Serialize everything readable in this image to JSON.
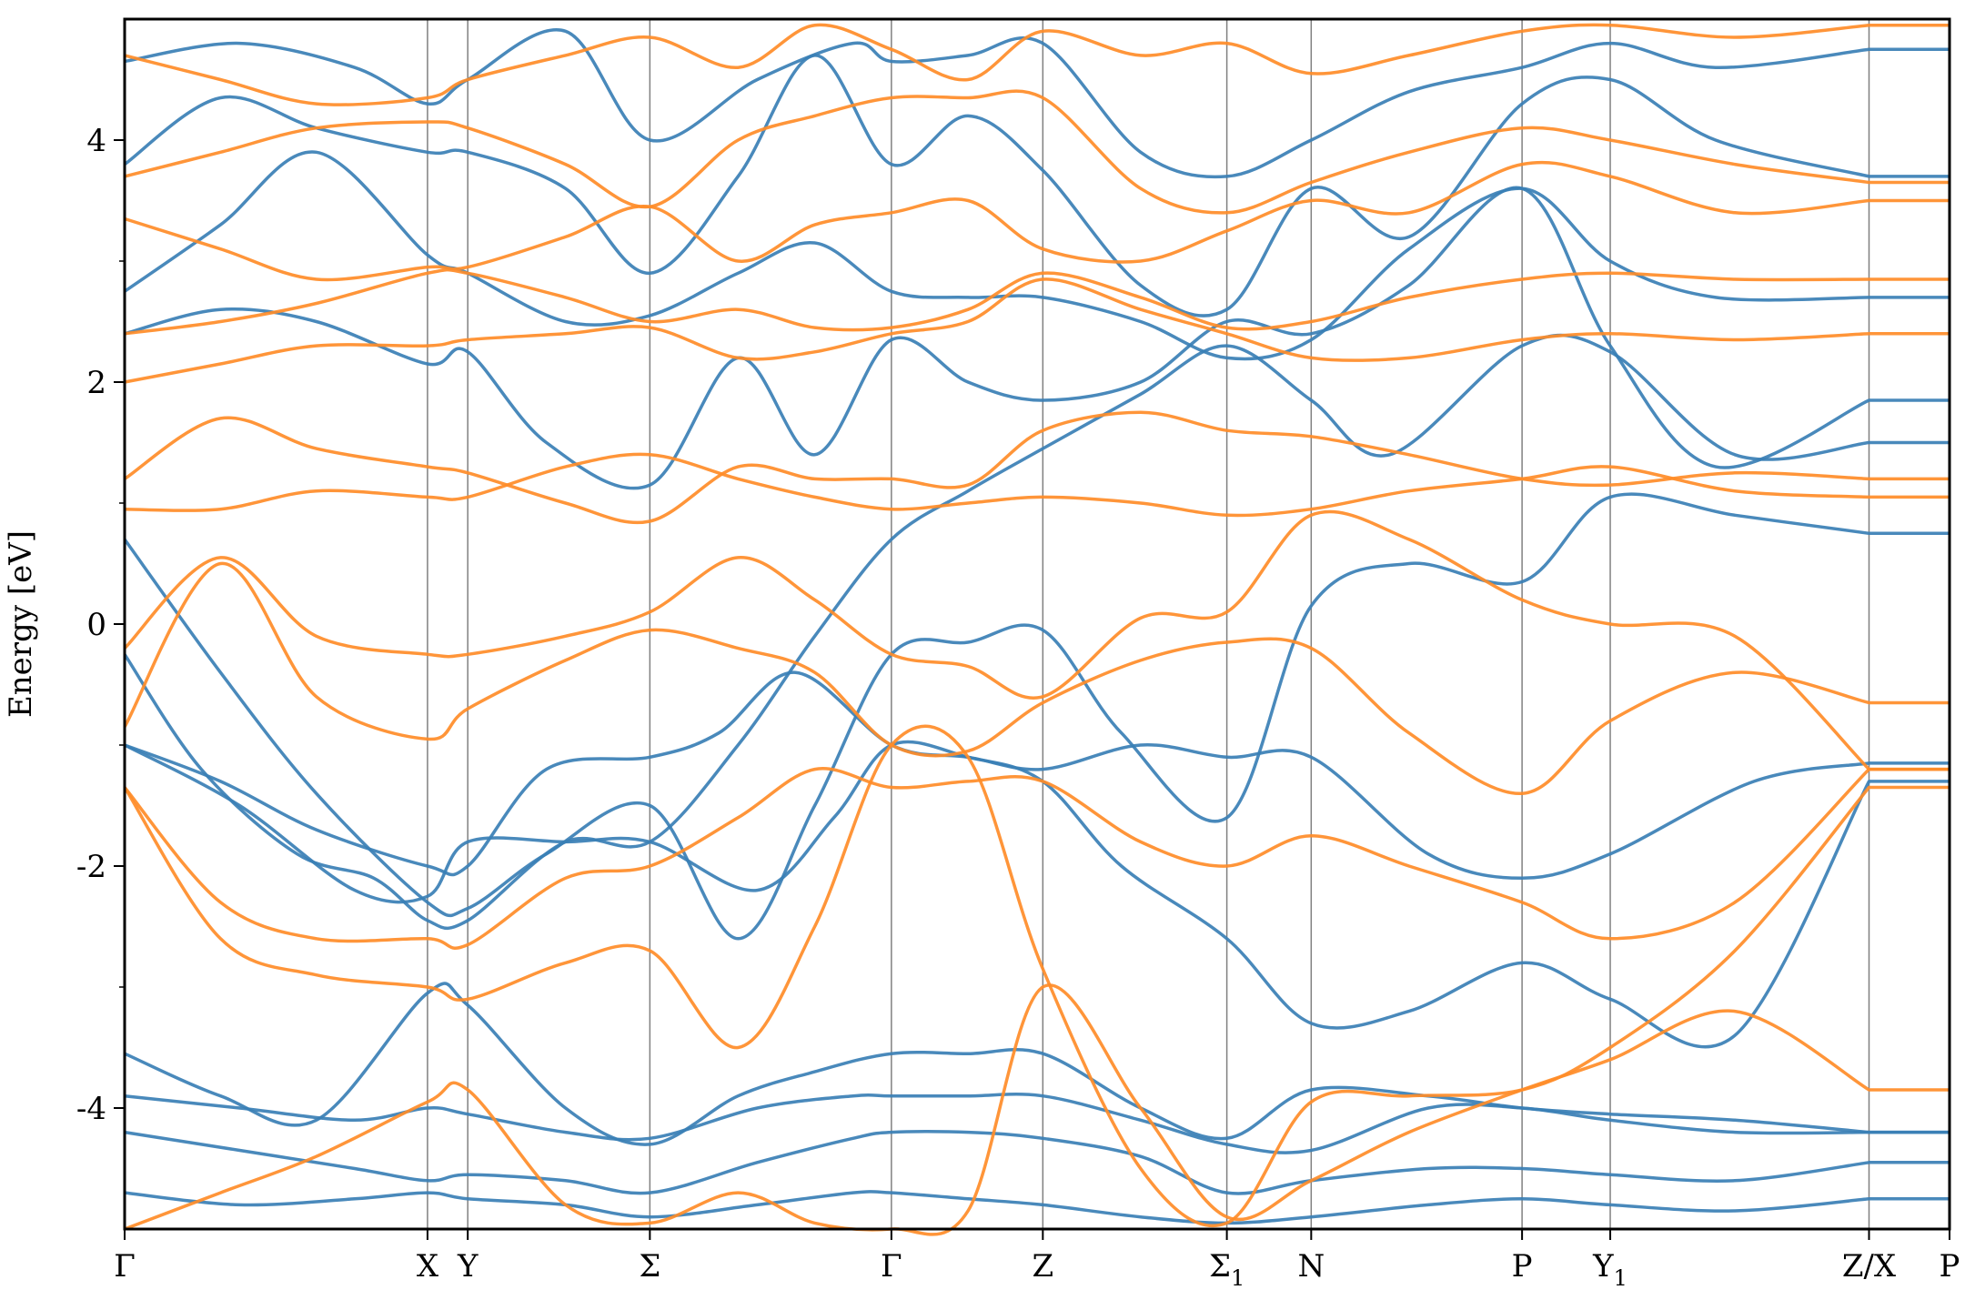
{
  "chart_data": {
    "type": "line",
    "title": "",
    "xlabel": "",
    "ylabel": "Energy [eV]",
    "ylim": [
      -5,
      5
    ],
    "y_ticks": [
      {
        "value": 4,
        "label": "4"
      },
      {
        "value": 2,
        "label": "2"
      },
      {
        "value": 0,
        "label": "0"
      },
      {
        "value": -2,
        "label": "-2"
      },
      {
        "value": -4,
        "label": "-4"
      }
    ],
    "y_minor_ticks": [
      3,
      1,
      -1,
      -3
    ],
    "xlim": [
      0,
      9.52
    ],
    "x_ticks": [
      {
        "x": 0.0,
        "label": "Γ",
        "sub": ""
      },
      {
        "x": 1.58,
        "label": "X",
        "sub": ""
      },
      {
        "x": 1.79,
        "label": "Y",
        "sub": ""
      },
      {
        "x": 2.74,
        "label": "Σ",
        "sub": ""
      },
      {
        "x": 4.0,
        "label": "Γ",
        "sub": ""
      },
      {
        "x": 4.79,
        "label": "Z",
        "sub": ""
      },
      {
        "x": 5.75,
        "label": "Σ",
        "sub": "1"
      },
      {
        "x": 6.19,
        "label": "N",
        "sub": ""
      },
      {
        "x": 7.29,
        "label": "P",
        "sub": ""
      },
      {
        "x": 7.75,
        "label": "Y",
        "sub": "1"
      },
      {
        "x": 9.1,
        "label": "Z/X",
        "sub": ""
      },
      {
        "x": 9.52,
        "label": "P",
        "sub": ""
      }
    ],
    "grid": "vertical lines at high-symmetry points",
    "legend": "none",
    "colors": {
      "band_a": "#3a7fb5",
      "band_b": "#ff8c28",
      "vline": "#808080",
      "axis": "#000000"
    },
    "series": [
      {
        "color": "band_a",
        "x": [
          0,
          0.5,
          1.0,
          1.58,
          1.79,
          2.2,
          2.74,
          3.2,
          3.6,
          4.0,
          4.4,
          4.79,
          5.2,
          5.75,
          6.19,
          6.7,
          7.29,
          7.75,
          8.4,
          9.1
        ],
        "y": [
          0.7,
          -0.4,
          -1.4,
          -2.3,
          -2.35,
          -1.9,
          -1.5,
          -2.6,
          -1.5,
          -0.25,
          -0.15,
          -0.05,
          -0.9,
          -1.6,
          0.15,
          0.5,
          0.35,
          1.05,
          0.9,
          0.75
        ]
      },
      {
        "color": "band_a",
        "x": [
          0,
          0.4,
          0.9,
          1.3,
          1.58,
          1.79,
          2.3,
          2.74,
          3.2,
          3.6,
          4.0,
          4.4,
          4.79,
          5.3,
          5.75,
          6.19,
          6.6,
          7.29,
          7.75,
          8.4,
          9.1
        ],
        "y": [
          -0.25,
          -1.2,
          -1.9,
          -2.1,
          -2.45,
          -2.45,
          -1.8,
          -1.8,
          -1.0,
          -0.1,
          0.7,
          1.1,
          1.45,
          1.9,
          2.3,
          1.85,
          1.4,
          2.3,
          2.25,
          1.4,
          1.5
        ]
      },
      {
        "color": "band_a",
        "x": [
          0,
          0.5,
          1.0,
          1.58,
          1.79,
          2.2,
          2.74,
          3.1,
          3.5,
          4.0,
          4.4,
          4.79,
          5.3,
          5.75,
          6.19,
          6.8,
          7.29,
          7.75,
          8.5,
          9.1
        ],
        "y": [
          -1.0,
          -1.3,
          -1.7,
          -2.0,
          -2.0,
          -1.2,
          -1.1,
          -0.9,
          -0.4,
          -1.0,
          -1.1,
          -1.2,
          -1.0,
          -1.1,
          -1.1,
          -1.9,
          -2.1,
          -1.9,
          -1.3,
          -1.15
        ]
      },
      {
        "color": "band_a",
        "x": [
          0,
          0.6,
          1.2,
          1.58,
          1.79,
          2.3,
          2.74,
          3.3,
          3.7,
          4.0,
          4.4,
          4.79,
          5.2,
          5.75,
          6.19,
          6.7,
          7.29,
          7.75,
          8.4,
          9.1
        ],
        "y": [
          -1.0,
          -1.5,
          -2.2,
          -2.25,
          -1.8,
          -1.8,
          -1.8,
          -2.2,
          -1.6,
          -1.0,
          -1.1,
          -1.3,
          -2.0,
          -2.6,
          -3.3,
          -3.2,
          -2.8,
          -3.1,
          -3.4,
          -1.3
        ]
      },
      {
        "color": "band_a",
        "x": [
          0,
          0.5,
          1.0,
          1.58,
          1.79,
          2.3,
          2.74,
          3.2,
          3.6,
          4.0,
          4.4,
          4.79,
          5.3,
          5.75,
          6.19,
          6.8,
          7.29,
          7.75,
          8.4,
          9.1
        ],
        "y": [
          -3.55,
          -3.9,
          -4.1,
          -3.05,
          -3.15,
          -4.0,
          -4.3,
          -3.9,
          -3.7,
          -3.55,
          -3.55,
          -3.55,
          -4.0,
          -4.25,
          -3.85,
          -3.9,
          -4.0,
          -4.05,
          -4.1,
          -4.2
        ]
      },
      {
        "color": "band_a",
        "x": [
          0,
          0.6,
          1.2,
          1.58,
          1.79,
          2.3,
          2.74,
          3.3,
          3.8,
          4.0,
          4.4,
          4.79,
          5.3,
          5.75,
          6.19,
          6.8,
          7.29,
          7.75,
          8.4,
          9.1
        ],
        "y": [
          -3.9,
          -4.0,
          -4.1,
          -4.0,
          -4.05,
          -4.2,
          -4.25,
          -4.0,
          -3.9,
          -3.9,
          -3.9,
          -3.9,
          -4.1,
          -4.3,
          -4.35,
          -4.0,
          -4.0,
          -4.1,
          -4.2,
          -4.2
        ]
      },
      {
        "color": "band_a",
        "x": [
          0,
          0.6,
          1.2,
          1.58,
          1.79,
          2.3,
          2.74,
          3.3,
          3.8,
          4.0,
          4.4,
          4.79,
          5.3,
          5.75,
          6.19,
          6.8,
          7.29,
          7.75,
          8.4,
          9.1
        ],
        "y": [
          -4.2,
          -4.35,
          -4.5,
          -4.6,
          -4.55,
          -4.6,
          -4.7,
          -4.45,
          -4.25,
          -4.2,
          -4.2,
          -4.25,
          -4.4,
          -4.7,
          -4.6,
          -4.5,
          -4.5,
          -4.55,
          -4.6,
          -4.45
        ]
      },
      {
        "color": "band_a",
        "x": [
          0,
          0.6,
          1.2,
          1.58,
          1.79,
          2.3,
          2.74,
          3.3,
          3.8,
          4.0,
          4.4,
          4.79,
          5.3,
          5.75,
          6.19,
          6.8,
          7.29,
          7.75,
          8.4,
          9.1
        ],
        "y": [
          -4.7,
          -4.8,
          -4.75,
          -4.7,
          -4.75,
          -4.8,
          -4.9,
          -4.8,
          -4.7,
          -4.7,
          -4.75,
          -4.8,
          -4.9,
          -4.95,
          -4.9,
          -4.8,
          -4.75,
          -4.8,
          -4.85,
          -4.75
        ]
      },
      {
        "color": "band_a",
        "x": [
          0,
          0.5,
          1.0,
          1.58,
          1.79,
          2.2,
          2.74,
          3.2,
          3.6,
          4.0,
          4.4,
          4.79,
          5.3,
          5.75,
          6.19,
          6.7,
          7.29,
          7.75,
          8.3,
          9.1
        ],
        "y": [
          2.4,
          2.6,
          2.5,
          2.15,
          2.25,
          1.5,
          1.15,
          2.2,
          1.4,
          2.35,
          2.0,
          1.85,
          2.0,
          2.5,
          2.4,
          2.8,
          3.6,
          2.3,
          1.3,
          1.85
        ]
      },
      {
        "color": "band_a",
        "x": [
          0,
          0.5,
          1.0,
          1.58,
          1.79,
          2.3,
          2.74,
          3.2,
          3.6,
          4.0,
          4.4,
          4.79,
          5.3,
          5.75,
          6.19,
          6.7,
          7.29,
          7.75,
          8.3,
          9.1
        ],
        "y": [
          2.75,
          3.3,
          3.9,
          3.05,
          2.9,
          2.5,
          2.55,
          2.9,
          3.15,
          2.75,
          2.7,
          2.7,
          2.5,
          2.2,
          2.35,
          3.1,
          3.6,
          3.0,
          2.7,
          2.7
        ]
      },
      {
        "color": "band_a",
        "x": [
          0,
          0.5,
          1.0,
          1.58,
          1.79,
          2.3,
          2.74,
          3.2,
          3.6,
          4.0,
          4.4,
          4.79,
          5.3,
          5.75,
          6.19,
          6.7,
          7.29,
          7.75,
          8.3,
          9.1
        ],
        "y": [
          3.8,
          4.35,
          4.1,
          3.9,
          3.9,
          3.6,
          2.9,
          3.7,
          4.7,
          3.8,
          4.2,
          3.75,
          2.8,
          2.6,
          3.6,
          3.2,
          4.3,
          4.5,
          4.0,
          3.7
        ]
      },
      {
        "color": "band_a",
        "x": [
          0,
          0.6,
          1.2,
          1.58,
          1.79,
          2.3,
          2.74,
          3.3,
          3.8,
          4.0,
          4.4,
          4.79,
          5.3,
          5.75,
          6.19,
          6.7,
          7.29,
          7.75,
          8.3,
          9.1
        ],
        "y": [
          4.65,
          4.8,
          4.6,
          4.3,
          4.5,
          4.9,
          4.0,
          4.5,
          4.8,
          4.65,
          4.7,
          4.8,
          3.9,
          3.7,
          4.0,
          4.4,
          4.6,
          4.8,
          4.6,
          4.75
        ]
      },
      {
        "color": "band_b",
        "x": [
          0,
          0.5,
          1.0,
          1.58,
          1.79,
          2.3,
          2.74,
          3.2,
          3.6,
          4.0,
          4.4,
          4.79,
          5.3,
          5.75,
          6.19,
          6.7,
          7.29,
          7.75,
          8.4,
          9.1
        ],
        "y": [
          -0.85,
          0.5,
          -0.6,
          -0.95,
          -0.7,
          -0.3,
          -0.05,
          -0.2,
          -0.4,
          -1.0,
          -1.05,
          -0.65,
          -0.3,
          -0.15,
          -0.2,
          -0.9,
          -1.4,
          -0.8,
          -0.4,
          -0.65
        ]
      },
      {
        "color": "band_b",
        "x": [
          0,
          0.5,
          1.0,
          1.58,
          1.79,
          2.3,
          2.74,
          3.2,
          3.6,
          4.0,
          4.4,
          4.79,
          5.3,
          5.75,
          6.19,
          6.7,
          7.29,
          7.75,
          8.4,
          9.1
        ],
        "y": [
          -0.2,
          0.55,
          -0.1,
          -0.25,
          -0.25,
          -0.1,
          0.1,
          0.55,
          0.2,
          -0.25,
          -0.35,
          -0.6,
          0.05,
          0.1,
          0.9,
          0.7,
          0.2,
          0.0,
          -0.1,
          -1.2
        ]
      },
      {
        "color": "band_b",
        "x": [
          0,
          0.5,
          1.0,
          1.58,
          1.79,
          2.3,
          2.74,
          3.2,
          3.6,
          4.0,
          4.4,
          4.79,
          5.3,
          5.75,
          6.19,
          6.7,
          7.29,
          7.75,
          8.4,
          9.1
        ],
        "y": [
          -1.35,
          -2.3,
          -2.6,
          -2.6,
          -2.65,
          -2.1,
          -2.0,
          -1.6,
          -1.2,
          -1.35,
          -1.3,
          -1.3,
          -1.8,
          -2.0,
          -1.75,
          -2.0,
          -2.3,
          -2.6,
          -2.3,
          -1.2
        ]
      },
      {
        "color": "band_b",
        "x": [
          0,
          0.5,
          1.0,
          1.58,
          1.79,
          2.3,
          2.74,
          3.2,
          3.6,
          4.0,
          4.4,
          4.79,
          5.3,
          5.75,
          6.19,
          6.7,
          7.29,
          7.75,
          8.4,
          9.1
        ],
        "y": [
          -1.35,
          -2.6,
          -2.9,
          -3.0,
          -3.1,
          -2.8,
          -2.7,
          -3.5,
          -2.5,
          -1.0,
          -1.1,
          -2.85,
          -4.5,
          -4.95,
          -3.95,
          -3.9,
          -3.85,
          -3.5,
          -2.7,
          -1.35
        ]
      },
      {
        "color": "band_b",
        "x": [
          0,
          0.5,
          1.0,
          1.58,
          1.79,
          2.3,
          2.74,
          3.2,
          3.6,
          4.0,
          4.4,
          4.79,
          5.3,
          5.75,
          6.19,
          6.7,
          7.29,
          7.75,
          8.4,
          9.1
        ],
        "y": [
          -5.0,
          -4.7,
          -4.4,
          -3.95,
          -3.85,
          -4.8,
          -4.95,
          -4.7,
          -4.95,
          -5.0,
          -4.85,
          -3.0,
          -4.0,
          -4.9,
          -4.6,
          -4.2,
          -3.85,
          -3.6,
          -3.2,
          -3.85
        ]
      },
      {
        "color": "band_b",
        "x": [
          0,
          0.5,
          1.0,
          1.58,
          1.79,
          2.3,
          2.74,
          3.2,
          3.6,
          4.0,
          4.4,
          4.79,
          5.3,
          5.75,
          6.19,
          6.7,
          7.29,
          7.75,
          8.4,
          9.1
        ],
        "y": [
          0.95,
          0.95,
          1.1,
          1.05,
          1.05,
          1.3,
          1.4,
          1.2,
          1.05,
          0.95,
          1.0,
          1.05,
          1.0,
          0.9,
          0.95,
          1.1,
          1.2,
          1.3,
          1.1,
          1.05
        ]
      },
      {
        "color": "band_b",
        "x": [
          0,
          0.5,
          1.0,
          1.58,
          1.79,
          2.3,
          2.74,
          3.2,
          3.6,
          4.0,
          4.4,
          4.79,
          5.3,
          5.75,
          6.19,
          6.7,
          7.29,
          7.75,
          8.4,
          9.1
        ],
        "y": [
          1.2,
          1.7,
          1.45,
          1.3,
          1.25,
          1.0,
          0.85,
          1.3,
          1.2,
          1.2,
          1.15,
          1.6,
          1.75,
          1.6,
          1.55,
          1.4,
          1.2,
          1.15,
          1.25,
          1.2
        ]
      },
      {
        "color": "band_b",
        "x": [
          0,
          0.5,
          1.0,
          1.58,
          1.79,
          2.3,
          2.74,
          3.2,
          3.6,
          4.0,
          4.4,
          4.79,
          5.3,
          5.75,
          6.19,
          6.7,
          7.29,
          7.75,
          8.4,
          9.1
        ],
        "y": [
          2.0,
          2.15,
          2.3,
          2.3,
          2.35,
          2.4,
          2.45,
          2.2,
          2.25,
          2.4,
          2.5,
          2.85,
          2.6,
          2.4,
          2.2,
          2.2,
          2.35,
          2.4,
          2.35,
          2.4
        ]
      },
      {
        "color": "band_b",
        "x": [
          0,
          0.5,
          1.0,
          1.58,
          1.79,
          2.3,
          2.74,
          3.2,
          3.6,
          4.0,
          4.4,
          4.79,
          5.3,
          5.75,
          6.19,
          6.7,
          7.29,
          7.75,
          8.4,
          9.1
        ],
        "y": [
          2.4,
          2.5,
          2.65,
          2.9,
          2.9,
          2.7,
          2.5,
          2.6,
          2.45,
          2.45,
          2.6,
          2.9,
          2.7,
          2.45,
          2.5,
          2.7,
          2.85,
          2.9,
          2.85,
          2.85
        ]
      },
      {
        "color": "band_b",
        "x": [
          0,
          0.5,
          1.0,
          1.58,
          1.79,
          2.3,
          2.74,
          3.2,
          3.6,
          4.0,
          4.4,
          4.79,
          5.3,
          5.75,
          6.19,
          6.7,
          7.29,
          7.75,
          8.4,
          9.1
        ],
        "y": [
          3.35,
          3.1,
          2.85,
          2.95,
          2.95,
          3.2,
          3.45,
          3.0,
          3.3,
          3.4,
          3.5,
          3.1,
          3.0,
          3.25,
          3.5,
          3.4,
          3.8,
          3.7,
          3.4,
          3.5
        ]
      },
      {
        "color": "band_b",
        "x": [
          0,
          0.5,
          1.0,
          1.58,
          1.79,
          2.3,
          2.74,
          3.2,
          3.6,
          4.0,
          4.4,
          4.79,
          5.3,
          5.75,
          6.19,
          6.7,
          7.29,
          7.75,
          8.4,
          9.1
        ],
        "y": [
          3.7,
          3.9,
          4.1,
          4.15,
          4.1,
          3.8,
          3.45,
          4.0,
          4.2,
          4.35,
          4.35,
          4.35,
          3.6,
          3.4,
          3.65,
          3.9,
          4.1,
          4.0,
          3.8,
          3.65
        ]
      },
      {
        "color": "band_b",
        "x": [
          0,
          0.5,
          1.0,
          1.58,
          1.79,
          2.3,
          2.74,
          3.2,
          3.6,
          4.0,
          4.4,
          4.79,
          5.3,
          5.75,
          6.19,
          6.7,
          7.29,
          7.75,
          8.4,
          9.1
        ],
        "y": [
          4.7,
          4.5,
          4.3,
          4.35,
          4.5,
          4.7,
          4.85,
          4.6,
          4.95,
          4.75,
          4.5,
          4.9,
          4.7,
          4.8,
          4.55,
          4.7,
          4.9,
          4.95,
          4.85,
          4.95
        ]
      }
    ]
  }
}
